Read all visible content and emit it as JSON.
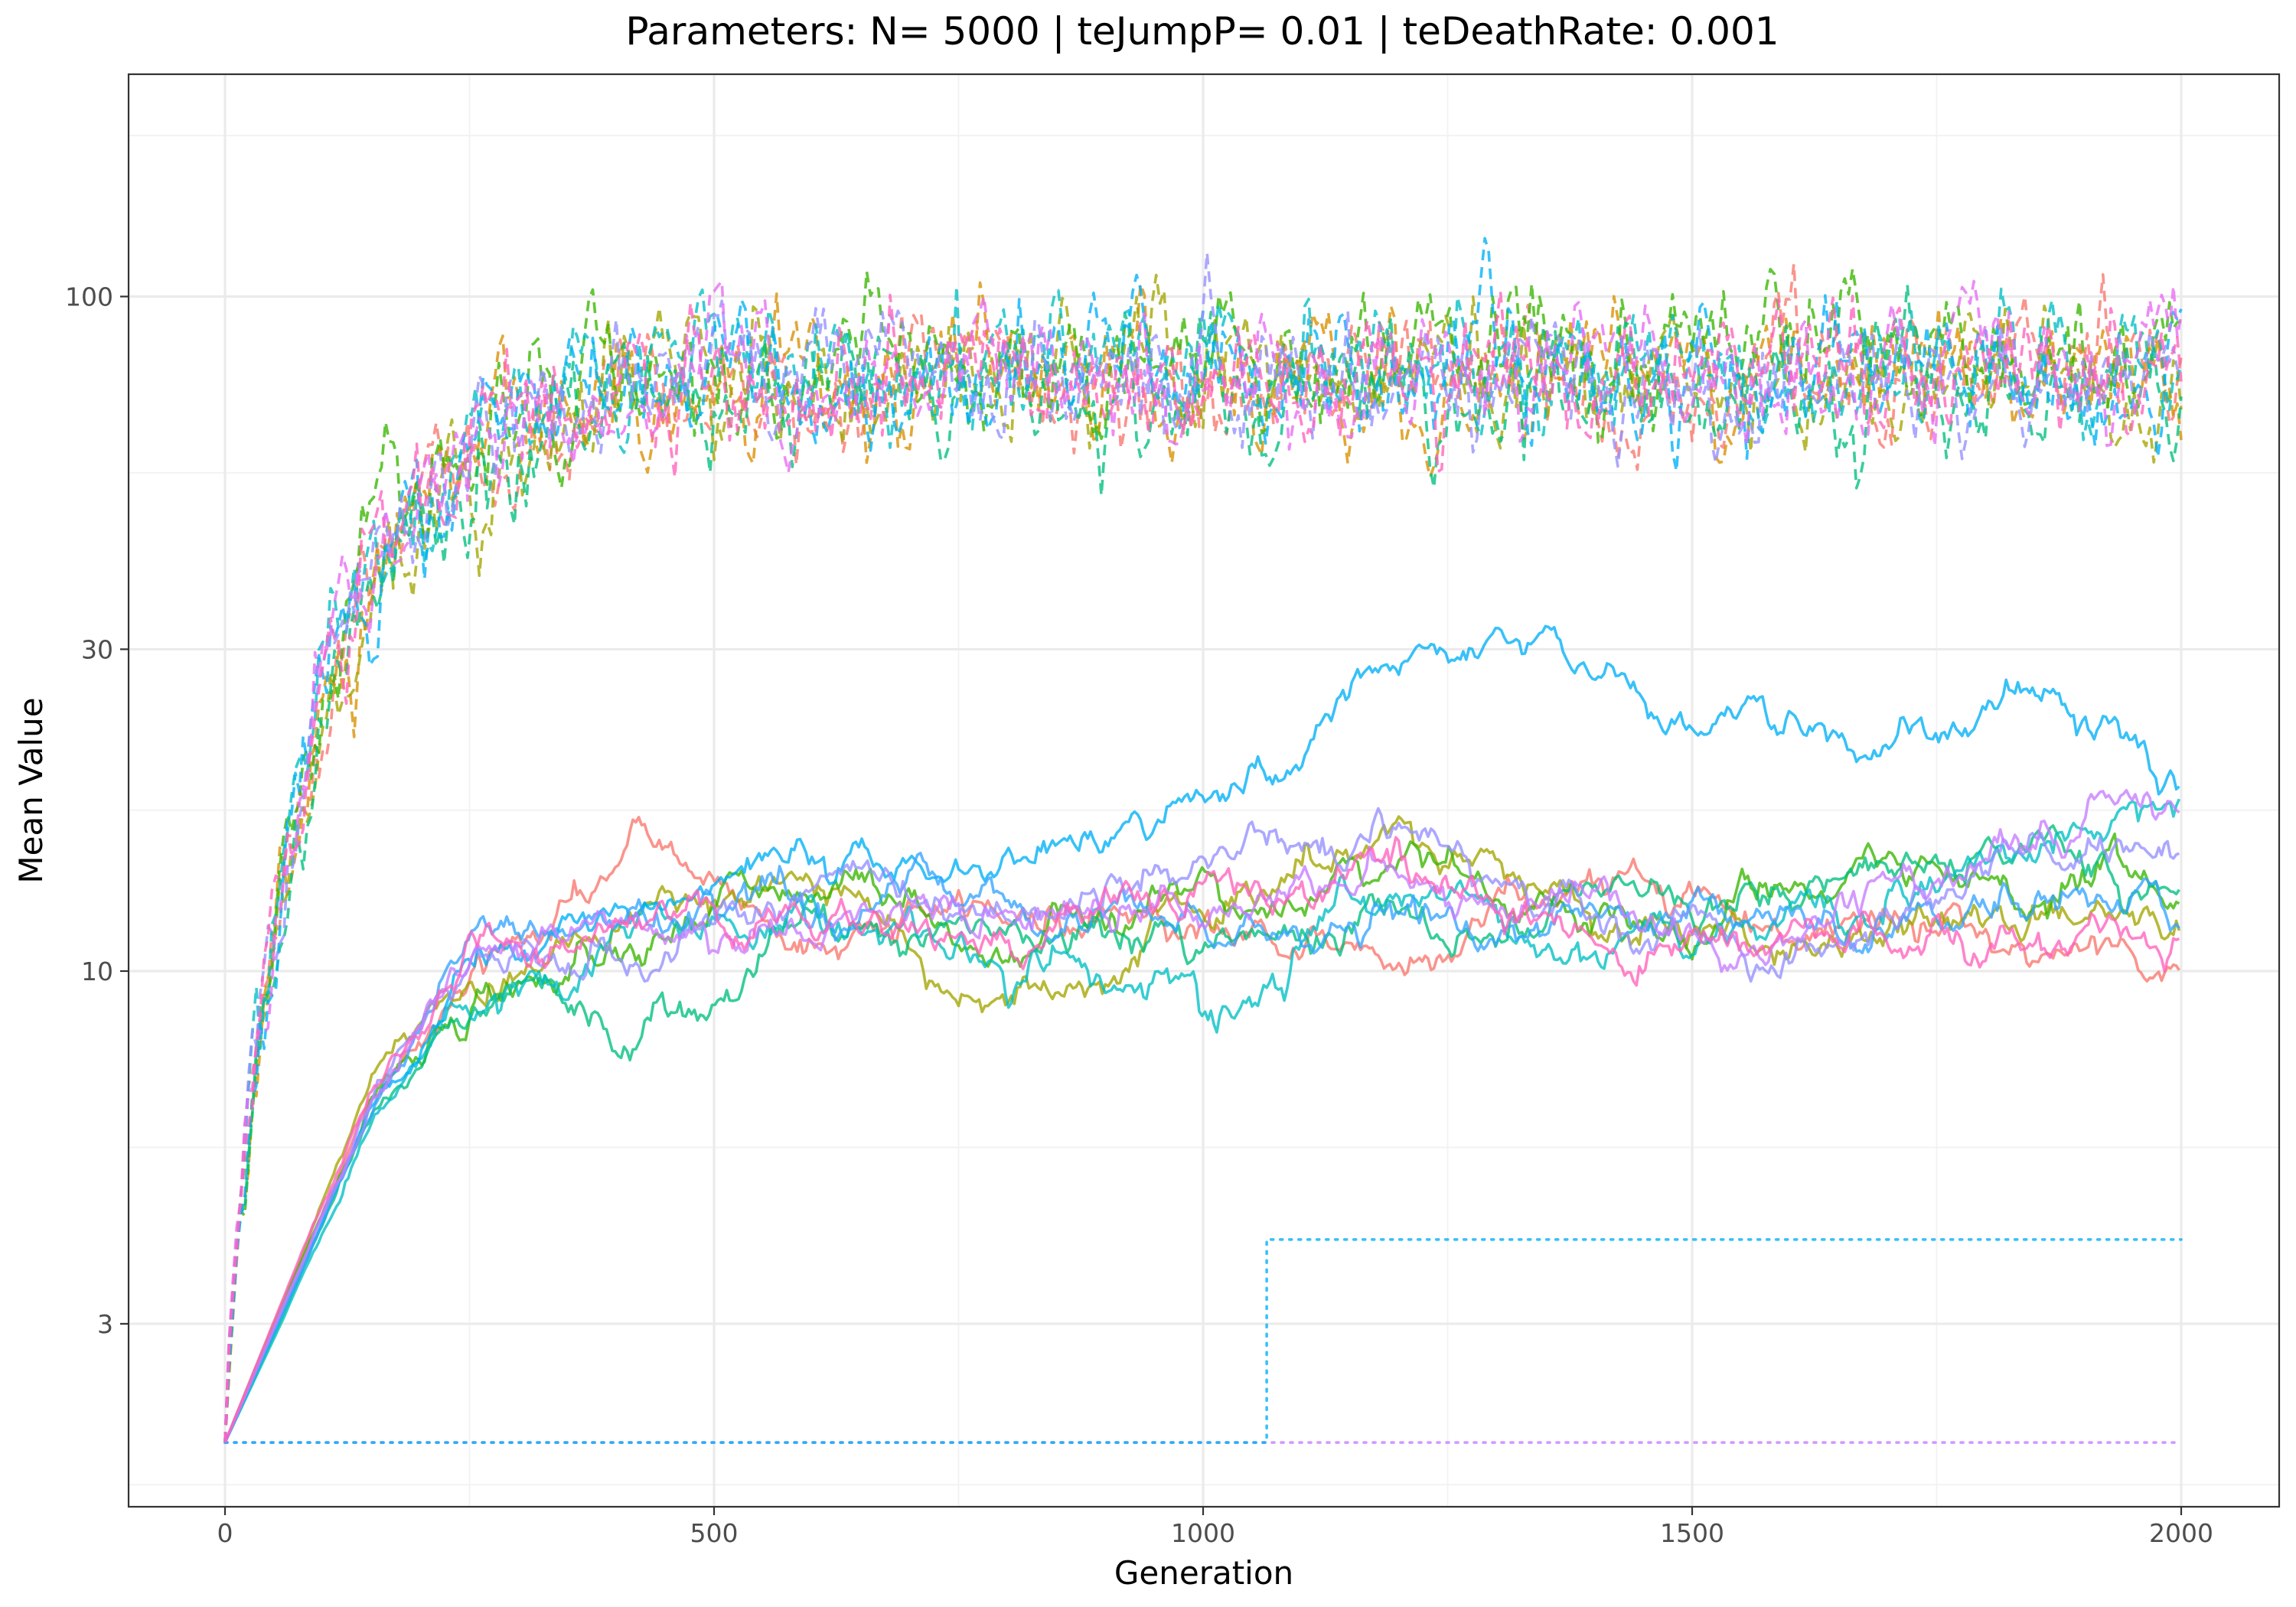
{
  "chart_data": {
    "type": "line",
    "title": "Parameters:   N= 5000  |  teJumpP= 0.01  |  teDeathRate: 0.001",
    "xlabel": "Generation",
    "ylabel": "Mean Value",
    "xlim": [
      -100,
      2100
    ],
    "ylim": [
      1.8,
      150
    ],
    "y_scale": "log",
    "grid": true,
    "legend": "none",
    "x_ticks": [
      0,
      500,
      1000,
      1500,
      2000
    ],
    "y_ticks": [
      3,
      10,
      30,
      100
    ],
    "groups": {
      "dashed": {
        "style": "dashed",
        "description_of_shape": "rapid rise from 2 to ~75 by generation 300, then fluctuates 55-130",
        "series": [
          {
            "color": "#F8766D",
            "start": 2,
            "plateau": 77
          },
          {
            "color": "#D89000",
            "start": 2,
            "plateau": 78
          },
          {
            "color": "#A3A500",
            "start": 2,
            "plateau": 76
          },
          {
            "color": "#39B600",
            "start": 2,
            "plateau": 80
          },
          {
            "color": "#00BF7D",
            "start": 2,
            "plateau": 74
          },
          {
            "color": "#00BFC4",
            "start": 2,
            "plateau": 79
          },
          {
            "color": "#00B0F6",
            "start": 2,
            "plateau": 78
          },
          {
            "color": "#9590FF",
            "start": 2,
            "plateau": 77
          },
          {
            "color": "#E76BF3",
            "start": 2,
            "plateau": 76
          },
          {
            "color": "#FF62BC",
            "start": 2,
            "plateau": 75
          }
        ]
      },
      "solid": {
        "style": "solid",
        "series": [
          {
            "color": "#F8766D",
            "points": [
              [
                0,
                2
              ],
              [
                150,
                6.5
              ],
              [
                250,
                9.5
              ],
              [
                430,
                15.5
              ],
              [
                600,
                11
              ],
              [
                800,
                12.5
              ],
              [
                1000,
                12
              ],
              [
                1200,
                10.5
              ],
              [
                1400,
                14
              ],
              [
                1600,
                12
              ],
              [
                1800,
                11.5
              ],
              [
                2000,
                10.5
              ]
            ]
          },
          {
            "color": "#A3A500",
            "points": [
              [
                0,
                2
              ],
              [
                150,
                6.8
              ],
              [
                250,
                9.5
              ],
              [
                450,
                14
              ],
              [
                650,
                12
              ],
              [
                800,
                9
              ],
              [
                1000,
                12.5
              ],
              [
                1200,
                15.5
              ],
              [
                1400,
                12.5
              ],
              [
                1600,
                11
              ],
              [
                1800,
                12
              ],
              [
                2000,
                11
              ]
            ]
          },
          {
            "color": "#39B600",
            "points": [
              [
                0,
                2
              ],
              [
                150,
                6.6
              ],
              [
                250,
                9
              ],
              [
                450,
                12
              ],
              [
                600,
                14
              ],
              [
                800,
                11
              ],
              [
                1000,
                13
              ],
              [
                1200,
                14
              ],
              [
                1400,
                12
              ],
              [
                1600,
                13
              ],
              [
                1800,
                13.5
              ],
              [
                2000,
                12.5
              ]
            ]
          },
          {
            "color": "#00BF7D",
            "points": [
              [
                0,
                2
              ],
              [
                150,
                6
              ],
              [
                250,
                8.5
              ],
              [
                450,
                9.5
              ],
              [
                600,
                11.5
              ],
              [
                800,
                11
              ],
              [
                1000,
                11.5
              ],
              [
                1200,
                12
              ],
              [
                1400,
                13
              ],
              [
                1600,
                12.5
              ],
              [
                1800,
                16
              ],
              [
                2000,
                13.5
              ]
            ]
          },
          {
            "color": "#00BFC4",
            "points": [
              [
                0,
                2
              ],
              [
                150,
                5.8
              ],
              [
                250,
                8.8
              ],
              [
                450,
                11.5
              ],
              [
                600,
                12
              ],
              [
                800,
                11.5
              ],
              [
                1000,
                9.5
              ],
              [
                1200,
                12
              ],
              [
                1400,
                10.5
              ],
              [
                1600,
                12.5
              ],
              [
                1800,
                14
              ],
              [
                2000,
                17.5
              ]
            ]
          },
          {
            "color": "#00B0F6",
            "points": [
              [
                0,
                2
              ],
              [
                150,
                6.2
              ],
              [
                250,
                10
              ],
              [
                450,
                12.5
              ],
              [
                550,
                15
              ],
              [
                700,
                14
              ],
              [
                900,
                15
              ],
              [
                1000,
                18.5
              ],
              [
                1100,
                21
              ],
              [
                1200,
                27
              ],
              [
                1300,
                30
              ],
              [
                1400,
                28
              ],
              [
                1500,
                24.5
              ],
              [
                1600,
                23
              ],
              [
                1700,
                21
              ],
              [
                1850,
                24
              ],
              [
                2000,
                19.5
              ]
            ]
          },
          {
            "color": "#35A4FF",
            "points": [
              [
                0,
                2
              ],
              [
                150,
                6.2
              ],
              [
                250,
                10.5
              ],
              [
                450,
                13
              ],
              [
                600,
                13
              ],
              [
                800,
                12.5
              ],
              [
                1000,
                12
              ],
              [
                1100,
                10
              ],
              [
                1200,
                11.5
              ],
              [
                1400,
                12.5
              ],
              [
                1600,
                12
              ],
              [
                1800,
                12.5
              ],
              [
                2000,
                13.5
              ]
            ]
          },
          {
            "color": "#9590FF",
            "points": [
              [
                0,
                2
              ],
              [
                150,
                6.4
              ],
              [
                250,
                9.5
              ],
              [
                450,
                10
              ],
              [
                600,
                13.5
              ],
              [
                800,
                12.5
              ],
              [
                1000,
                16
              ],
              [
                1200,
                16
              ],
              [
                1400,
                12.5
              ],
              [
                1600,
                10.5
              ],
              [
                1800,
                14
              ],
              [
                2000,
                14.5
              ]
            ]
          },
          {
            "color": "#C77CFF",
            "points": [
              [
                0,
                2
              ],
              [
                150,
                6.5
              ],
              [
                250,
                11
              ],
              [
                450,
                11
              ],
              [
                600,
                11.5
              ],
              [
                800,
                12.5
              ],
              [
                1000,
                13.5
              ],
              [
                1200,
                13
              ],
              [
                1400,
                12.5
              ],
              [
                1600,
                11
              ],
              [
                1800,
                15
              ],
              [
                2000,
                16
              ]
            ]
          },
          {
            "color": "#FF62BC",
            "points": [
              [
                0,
                2
              ],
              [
                150,
                6.9
              ],
              [
                250,
                10
              ],
              [
                450,
                11.5
              ],
              [
                600,
                12
              ],
              [
                800,
                11
              ],
              [
                1000,
                13.5
              ],
              [
                1200,
                14
              ],
              [
                1400,
                12
              ],
              [
                1600,
                11
              ],
              [
                1800,
                11.5
              ],
              [
                2000,
                10
              ]
            ]
          }
        ]
      },
      "dotted": {
        "style": "dotted",
        "series": [
          {
            "color": "#C77CFF",
            "points": [
              [
                0,
                2
              ],
              [
                2000,
                2
              ]
            ]
          },
          {
            "color": "#00B0F6",
            "points": [
              [
                0,
                2
              ],
              [
                1065,
                2
              ],
              [
                1065,
                4
              ],
              [
                2000,
                4
              ]
            ]
          }
        ]
      }
    }
  }
}
